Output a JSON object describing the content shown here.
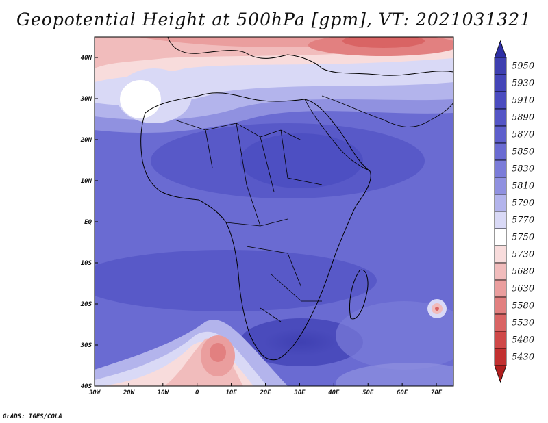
{
  "title": "Geopotential Height at 500hPa [gpm], VT: 2021031321",
  "credit": "GrADS: IGES/COLA",
  "map": {
    "variable": "Geopotential Height at 500hPa",
    "units": "gpm",
    "valid_time": "2021031321",
    "lon_range": [
      -30,
      75
    ],
    "lat_range": [
      -40,
      45
    ]
  },
  "axes": {
    "x_ticks": [
      {
        "value": -30,
        "label": "30W"
      },
      {
        "value": -20,
        "label": "20W"
      },
      {
        "value": -10,
        "label": "10W"
      },
      {
        "value": 0,
        "label": "0"
      },
      {
        "value": 10,
        "label": "10E"
      },
      {
        "value": 20,
        "label": "20E"
      },
      {
        "value": 30,
        "label": "30E"
      },
      {
        "value": 40,
        "label": "40E"
      },
      {
        "value": 50,
        "label": "50E"
      },
      {
        "value": 60,
        "label": "60E"
      },
      {
        "value": 70,
        "label": "70E"
      }
    ],
    "y_ticks": [
      {
        "value": 40,
        "label": "40N"
      },
      {
        "value": 30,
        "label": "30N"
      },
      {
        "value": 20,
        "label": "20N"
      },
      {
        "value": 10,
        "label": "10N"
      },
      {
        "value": 0,
        "label": "EQ"
      },
      {
        "value": -10,
        "label": "10S"
      },
      {
        "value": -20,
        "label": "20S"
      },
      {
        "value": -30,
        "label": "30S"
      },
      {
        "value": -40,
        "label": "40S"
      }
    ]
  },
  "colorbar": {
    "levels": [
      {
        "label": "5950",
        "color": "#3e3fb0"
      },
      {
        "label": "5930",
        "color": "#4445b8"
      },
      {
        "label": "5910",
        "color": "#4b4cc0"
      },
      {
        "label": "5890",
        "color": "#5455c6"
      },
      {
        "label": "5870",
        "color": "#5e5fcc"
      },
      {
        "label": "5850",
        "color": "#6a6bd2"
      },
      {
        "label": "5830",
        "color": "#7b7cd9"
      },
      {
        "label": "5810",
        "color": "#9091e0"
      },
      {
        "label": "5790",
        "color": "#b3b4ec"
      },
      {
        "label": "5770",
        "color": "#d9d9f6"
      },
      {
        "label": "5750",
        "color": "#ffffff"
      },
      {
        "label": "5730",
        "color": "#f8dcdc"
      },
      {
        "label": "5680",
        "color": "#f1bcbc"
      },
      {
        "label": "5630",
        "color": "#ea9e9e"
      },
      {
        "label": "5580",
        "color": "#e28080"
      },
      {
        "label": "5530",
        "color": "#d96464"
      },
      {
        "label": "5480",
        "color": "#cf4848"
      },
      {
        "label": "5430",
        "color": "#c23030"
      }
    ],
    "top_triangle_color": "#2e2fa4",
    "bottom_triangle_color": "#b01e1e"
  }
}
